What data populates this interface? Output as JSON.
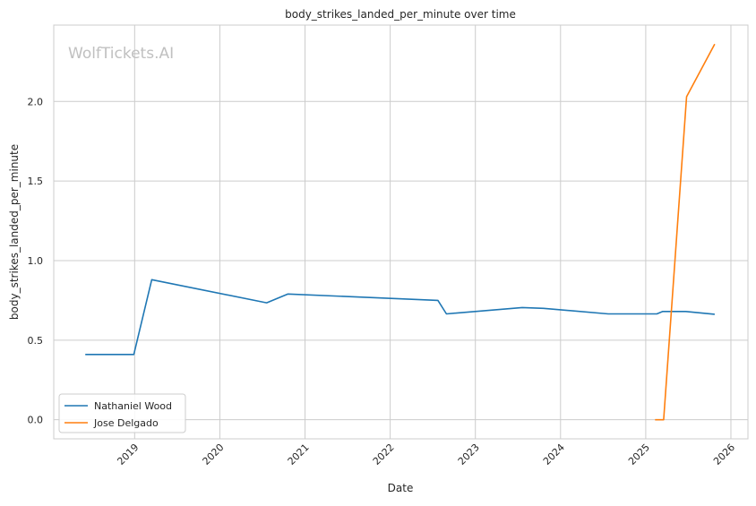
{
  "chart_data": {
    "type": "line",
    "title": "body_strikes_landed_per_minute over time",
    "xlabel": "Date",
    "ylabel": "body_strikes_landed_per_minute",
    "watermark": "WolfTickets.AI",
    "xlim": [
      2018.05,
      2026.2
    ],
    "ylim": [
      -0.12,
      2.48
    ],
    "xticks": [
      2019,
      2020,
      2021,
      2022,
      2023,
      2024,
      2025,
      2026
    ],
    "xtick_labels": [
      "2019",
      "2020",
      "2021",
      "2022",
      "2023",
      "2024",
      "2025",
      "2026"
    ],
    "yticks": [
      0.0,
      0.5,
      1.0,
      1.5,
      2.0
    ],
    "ytick_labels": [
      "0.0",
      "0.5",
      "1.0",
      "1.5",
      "2.0"
    ],
    "grid": true,
    "legend_position": "lower-left",
    "series": [
      {
        "name": "Nathaniel Wood",
        "color": "#1f77b4",
        "x": [
          2018.42,
          2018.99,
          2019.2,
          2020.55,
          2020.8,
          2022.56,
          2022.66,
          2023.55,
          2023.8,
          2024.56,
          2025.13,
          2025.2,
          2025.47,
          2025.81
        ],
        "y": [
          0.41,
          0.41,
          0.88,
          0.735,
          0.79,
          0.75,
          0.665,
          0.705,
          0.7,
          0.665,
          0.665,
          0.68,
          0.68,
          0.663
        ]
      },
      {
        "name": "Jose Delgado",
        "color": "#ff7f0e",
        "x": [
          2025.11,
          2025.21,
          2025.48,
          2025.81
        ],
        "y": [
          0.0,
          0.0,
          2.03,
          2.36
        ]
      }
    ]
  }
}
